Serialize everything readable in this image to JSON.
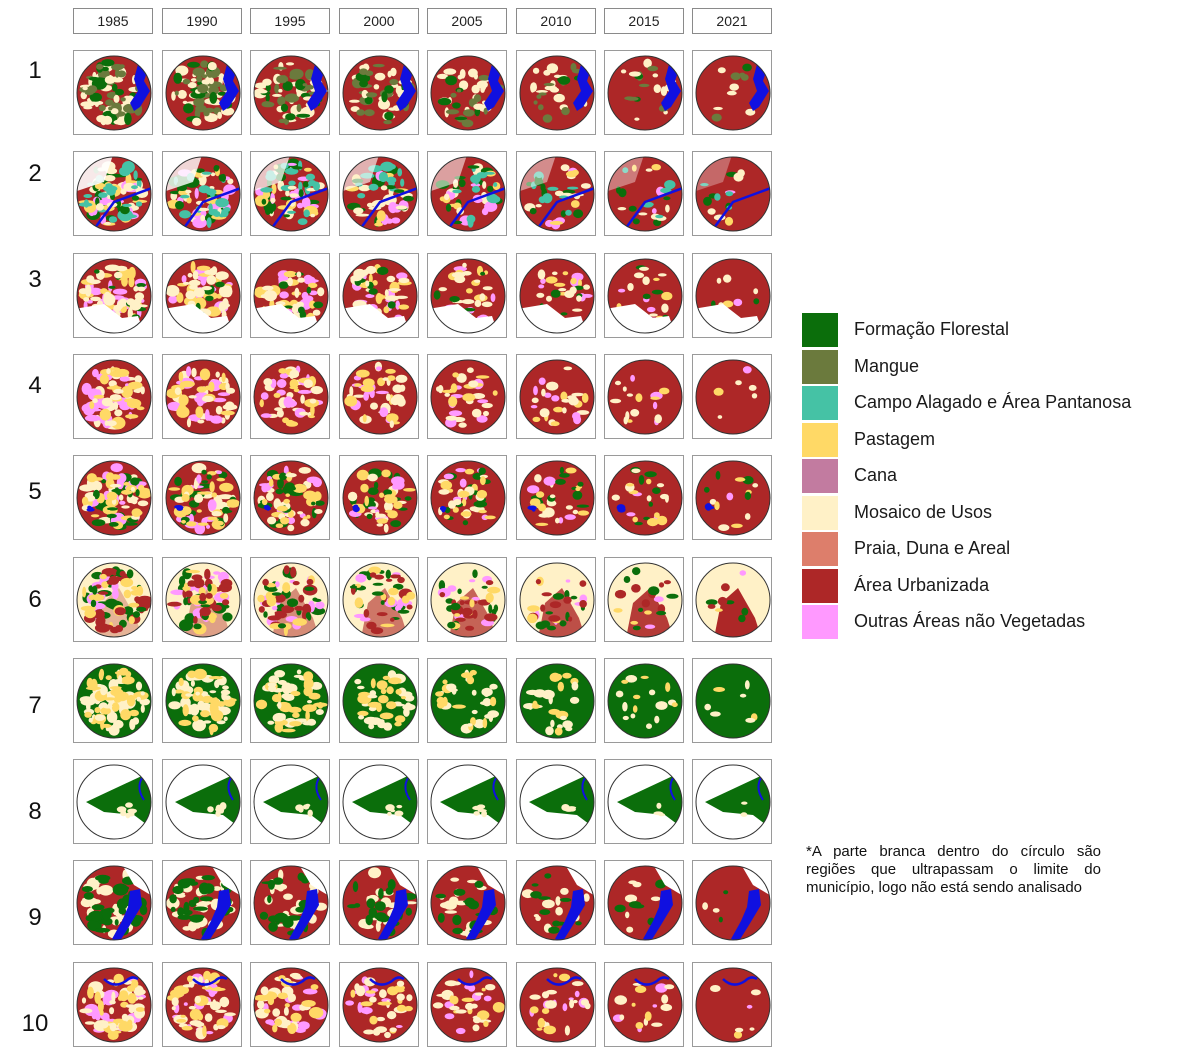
{
  "years": [
    "1985",
    "1990",
    "1995",
    "2000",
    "2005",
    "2010",
    "2015",
    "2021"
  ],
  "rows": [
    "1",
    "2",
    "3",
    "4",
    "5",
    "6",
    "7",
    "8",
    "9",
    "10"
  ],
  "colors": {
    "floresta": "#0b6e0b",
    "mangue": "#6b7a3d",
    "campo": "#45c2a5",
    "pastagem": "#ffd966",
    "cana": "#c27ba0",
    "mosaico": "#fff1c7",
    "praia": "#dd7e6b",
    "urbana": "#ad2727",
    "outras": "#ff99ff",
    "agua": "#1010e0"
  },
  "legend": [
    {
      "label": "Formação Florestal",
      "color": "#0b6e0b"
    },
    {
      "label": "Mangue",
      "color": "#6b7a3d"
    },
    {
      "label": "Campo Alagado e Área Pantanosa",
      "color": "#45c2a5"
    },
    {
      "label": "Pastagem",
      "color": "#ffd966"
    },
    {
      "label": "Cana",
      "color": "#c27ba0"
    },
    {
      "label": "Mosaico de Usos",
      "color": "#fff1c7"
    },
    {
      "label": "Praia, Duna e Areal",
      "color": "#dd7e6b"
    },
    {
      "label": "Área Urbanizada",
      "color": "#ad2727"
    },
    {
      "label": "Outras Áreas não Vegetadas",
      "color": "#ff99ff"
    }
  ],
  "note": "*A parte branca dentro do círculo são regiões que ultrapassam o limite do município, logo não está sendo analisado"
}
